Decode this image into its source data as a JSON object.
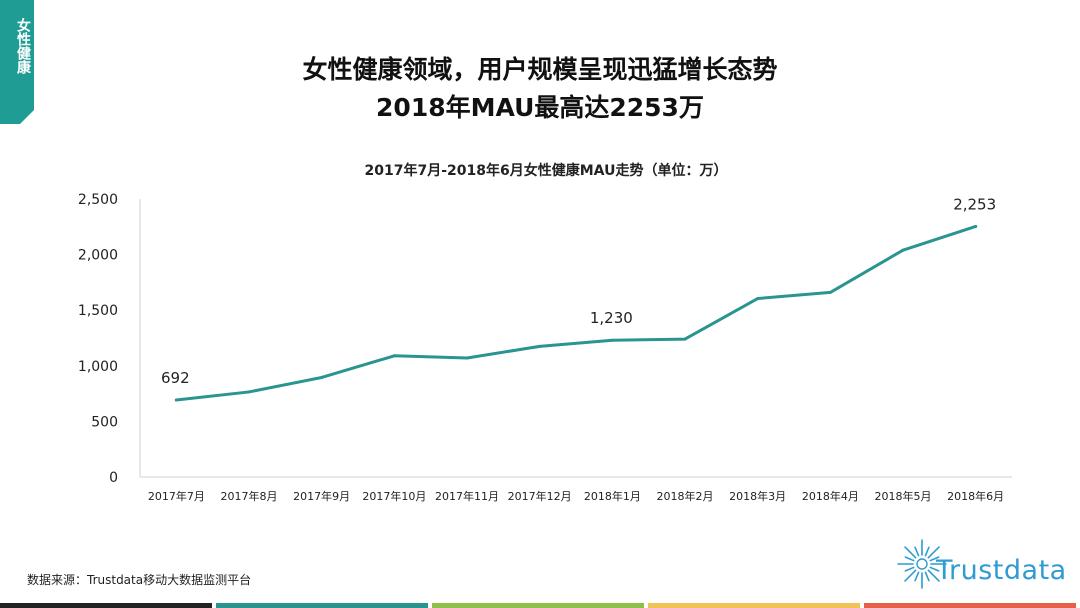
{
  "side_tab": {
    "label": "女性健康",
    "color": "#1f9c94"
  },
  "header": {
    "title_line1": "女性健康领域，用户规模呈现迅猛增长态势",
    "title_line2": "2018年MAU最高达2253万"
  },
  "chart_data": {
    "type": "line",
    "title": "2017年7月-2018年6月女性健康MAU走势（单位：万）",
    "categories": [
      "2017年7月",
      "2017年8月",
      "2017年9月",
      "2017年10月",
      "2017年11月",
      "2017年12月",
      "2018年1月",
      "2018年2月",
      "2018年3月",
      "2018年4月",
      "2018年5月",
      "2018年6月"
    ],
    "series": [
      {
        "values": [
          692,
          765,
          895,
          1090,
          1070,
          1175,
          1230,
          1240,
          1605,
          1660,
          2040,
          2253
        ],
        "color": "#2a9490"
      }
    ],
    "data_labels": [
      {
        "index": 0,
        "text": "692"
      },
      {
        "index": 6,
        "text": "1,230"
      },
      {
        "index": 11,
        "text": "2,253"
      }
    ],
    "ylim": [
      0,
      2500
    ],
    "yticks": [
      0,
      500,
      1000,
      1500,
      2000,
      2500
    ],
    "ytick_labels": [
      "0",
      "500",
      "1,000",
      "1,500",
      "2,000",
      "2,500"
    ],
    "grid": false
  },
  "footer": {
    "source": "数据来源：Trustdata移动大数据监测平台",
    "brand": "Trustdata",
    "brand_color": "#2f9bd2",
    "bar_colors": [
      "#222222",
      "#2a9490",
      "#8cc04a",
      "#f2c25a",
      "#e5604a"
    ]
  }
}
